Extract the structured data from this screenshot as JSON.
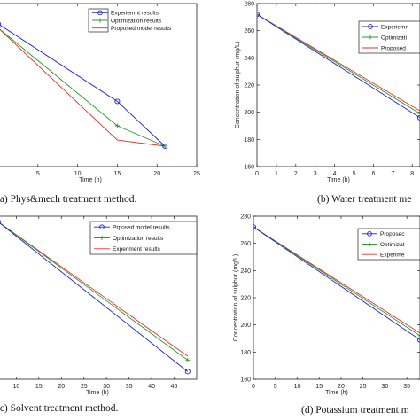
{
  "chart_data": [
    {
      "type": "line",
      "caption": "(a)   Phys&mech treatment method.",
      "xlabel": "Time (h)",
      "ylabel": "",
      "xticks": [
        "5",
        "10",
        "15",
        "20",
        "25"
      ],
      "yticks": [],
      "legend": [
        {
          "name": "Experiemnt results",
          "color": "#1f1fd6",
          "marker": "circle"
        },
        {
          "name": "Optimization results",
          "color": "#2a9a2a",
          "marker": "plus"
        },
        {
          "name": "Proposed model results",
          "color": "#e0302a",
          "marker": "none"
        }
      ],
      "series": [
        {
          "name": "Experiemnt results",
          "x": [
            0,
            15,
            21
          ],
          "y": [
            260,
            222,
            200
          ],
          "marker": "circle",
          "color": "#1f1fd6"
        },
        {
          "name": "Optimization results",
          "x": [
            0,
            15,
            21
          ],
          "y": [
            258,
            210,
            200
          ],
          "marker": "plus",
          "color": "#2a9a2a"
        },
        {
          "name": "Proposed model results",
          "x": [
            0,
            15,
            21
          ],
          "y": [
            258,
            203,
            200
          ],
          "marker": "none",
          "color": "#e0302a"
        }
      ],
      "xlim": [
        0,
        25
      ],
      "ylim": [
        190,
        270
      ]
    },
    {
      "type": "line",
      "caption": "(b) Water treatment me",
      "xlabel": "Time (h)",
      "ylabel": "Concentration of sulphur (mg/L)",
      "xticks": [
        "0",
        "1",
        "2",
        "3",
        "4",
        "5",
        "6",
        "7",
        "8"
      ],
      "yticks": [
        "160",
        "180",
        "200",
        "220",
        "240",
        "260",
        "280"
      ],
      "legend": [
        {
          "name": "Experiemr",
          "color": "#1f1fd6",
          "marker": "circle"
        },
        {
          "name": "Optimizati",
          "color": "#2a9a2a",
          "marker": "plus"
        },
        {
          "name": "Proposed",
          "color": "#e0302a",
          "marker": "none"
        }
      ],
      "series": [
        {
          "name": "Experiment",
          "x": [
            0,
            8.4
          ],
          "y": [
            272,
            196
          ],
          "marker": "circle",
          "color": "#1f1fd6"
        },
        {
          "name": "Optimization",
          "x": [
            0,
            8.4
          ],
          "y": [
            272,
            199
          ],
          "marker": "plus",
          "color": "#2a9a2a"
        },
        {
          "name": "Proposed",
          "x": [
            0,
            8.4
          ],
          "y": [
            272,
            201
          ],
          "marker": "none",
          "color": "#e0302a"
        }
      ],
      "xlim": [
        0,
        8.4
      ],
      "ylim": [
        160,
        280
      ]
    },
    {
      "type": "line",
      "caption": "(c) Solvent treatment method.",
      "xlabel": "Time (h)",
      "ylabel": "",
      "xticks": [
        "10",
        "15",
        "20",
        "25",
        "30",
        "35",
        "40",
        "45"
      ],
      "yticks": [],
      "legend": [
        {
          "name": "Prposed model results",
          "color": "#1f1fd6",
          "marker": "circle"
        },
        {
          "name": "Optimization results",
          "color": "#2a9a2a",
          "marker": "plus"
        },
        {
          "name": "Experiment results",
          "color": "#e0302a",
          "marker": "none"
        }
      ],
      "series": [
        {
          "name": "Prposed model results",
          "x": [
            6,
            48
          ],
          "y": [
            262,
            184
          ],
          "marker": "circle",
          "color": "#1f1fd6"
        },
        {
          "name": "Optimization results",
          "x": [
            6,
            48
          ],
          "y": [
            262,
            190
          ],
          "marker": "plus",
          "color": "#2a9a2a"
        },
        {
          "name": "Experiment results",
          "x": [
            6,
            48
          ],
          "y": [
            262,
            192
          ],
          "marker": "none",
          "color": "#e0302a"
        }
      ],
      "xlim": [
        6,
        50
      ],
      "ylim": [
        180,
        265
      ]
    },
    {
      "type": "line",
      "caption": "(d) Potassium treatment m",
      "xlabel": "Time (h)",
      "ylabel": "Concentration of sulphur (mg/L)",
      "xticks": [
        "0",
        "5",
        "10",
        "15",
        "20",
        "25",
        "30",
        "35"
      ],
      "yticks": [
        "160",
        "180",
        "200",
        "220",
        "240",
        "260",
        "280"
      ],
      "legend": [
        {
          "name": "Proposec",
          "color": "#1f1fd6",
          "marker": "circle"
        },
        {
          "name": "Optimizat",
          "color": "#2a9a2a",
          "marker": "plus"
        },
        {
          "name": "Experime",
          "color": "#e0302a",
          "marker": "none"
        }
      ],
      "series": [
        {
          "name": "Proposed",
          "x": [
            0,
            38
          ],
          "y": [
            272,
            189
          ],
          "marker": "circle",
          "color": "#1f1fd6"
        },
        {
          "name": "Optimization",
          "x": [
            0,
            38
          ],
          "y": [
            272,
            192
          ],
          "marker": "plus",
          "color": "#2a9a2a"
        },
        {
          "name": "Experiment",
          "x": [
            0,
            38
          ],
          "y": [
            272,
            194
          ],
          "marker": "none",
          "color": "#e0302a"
        }
      ],
      "xlim": [
        0,
        38
      ],
      "ylim": [
        160,
        280
      ]
    }
  ]
}
